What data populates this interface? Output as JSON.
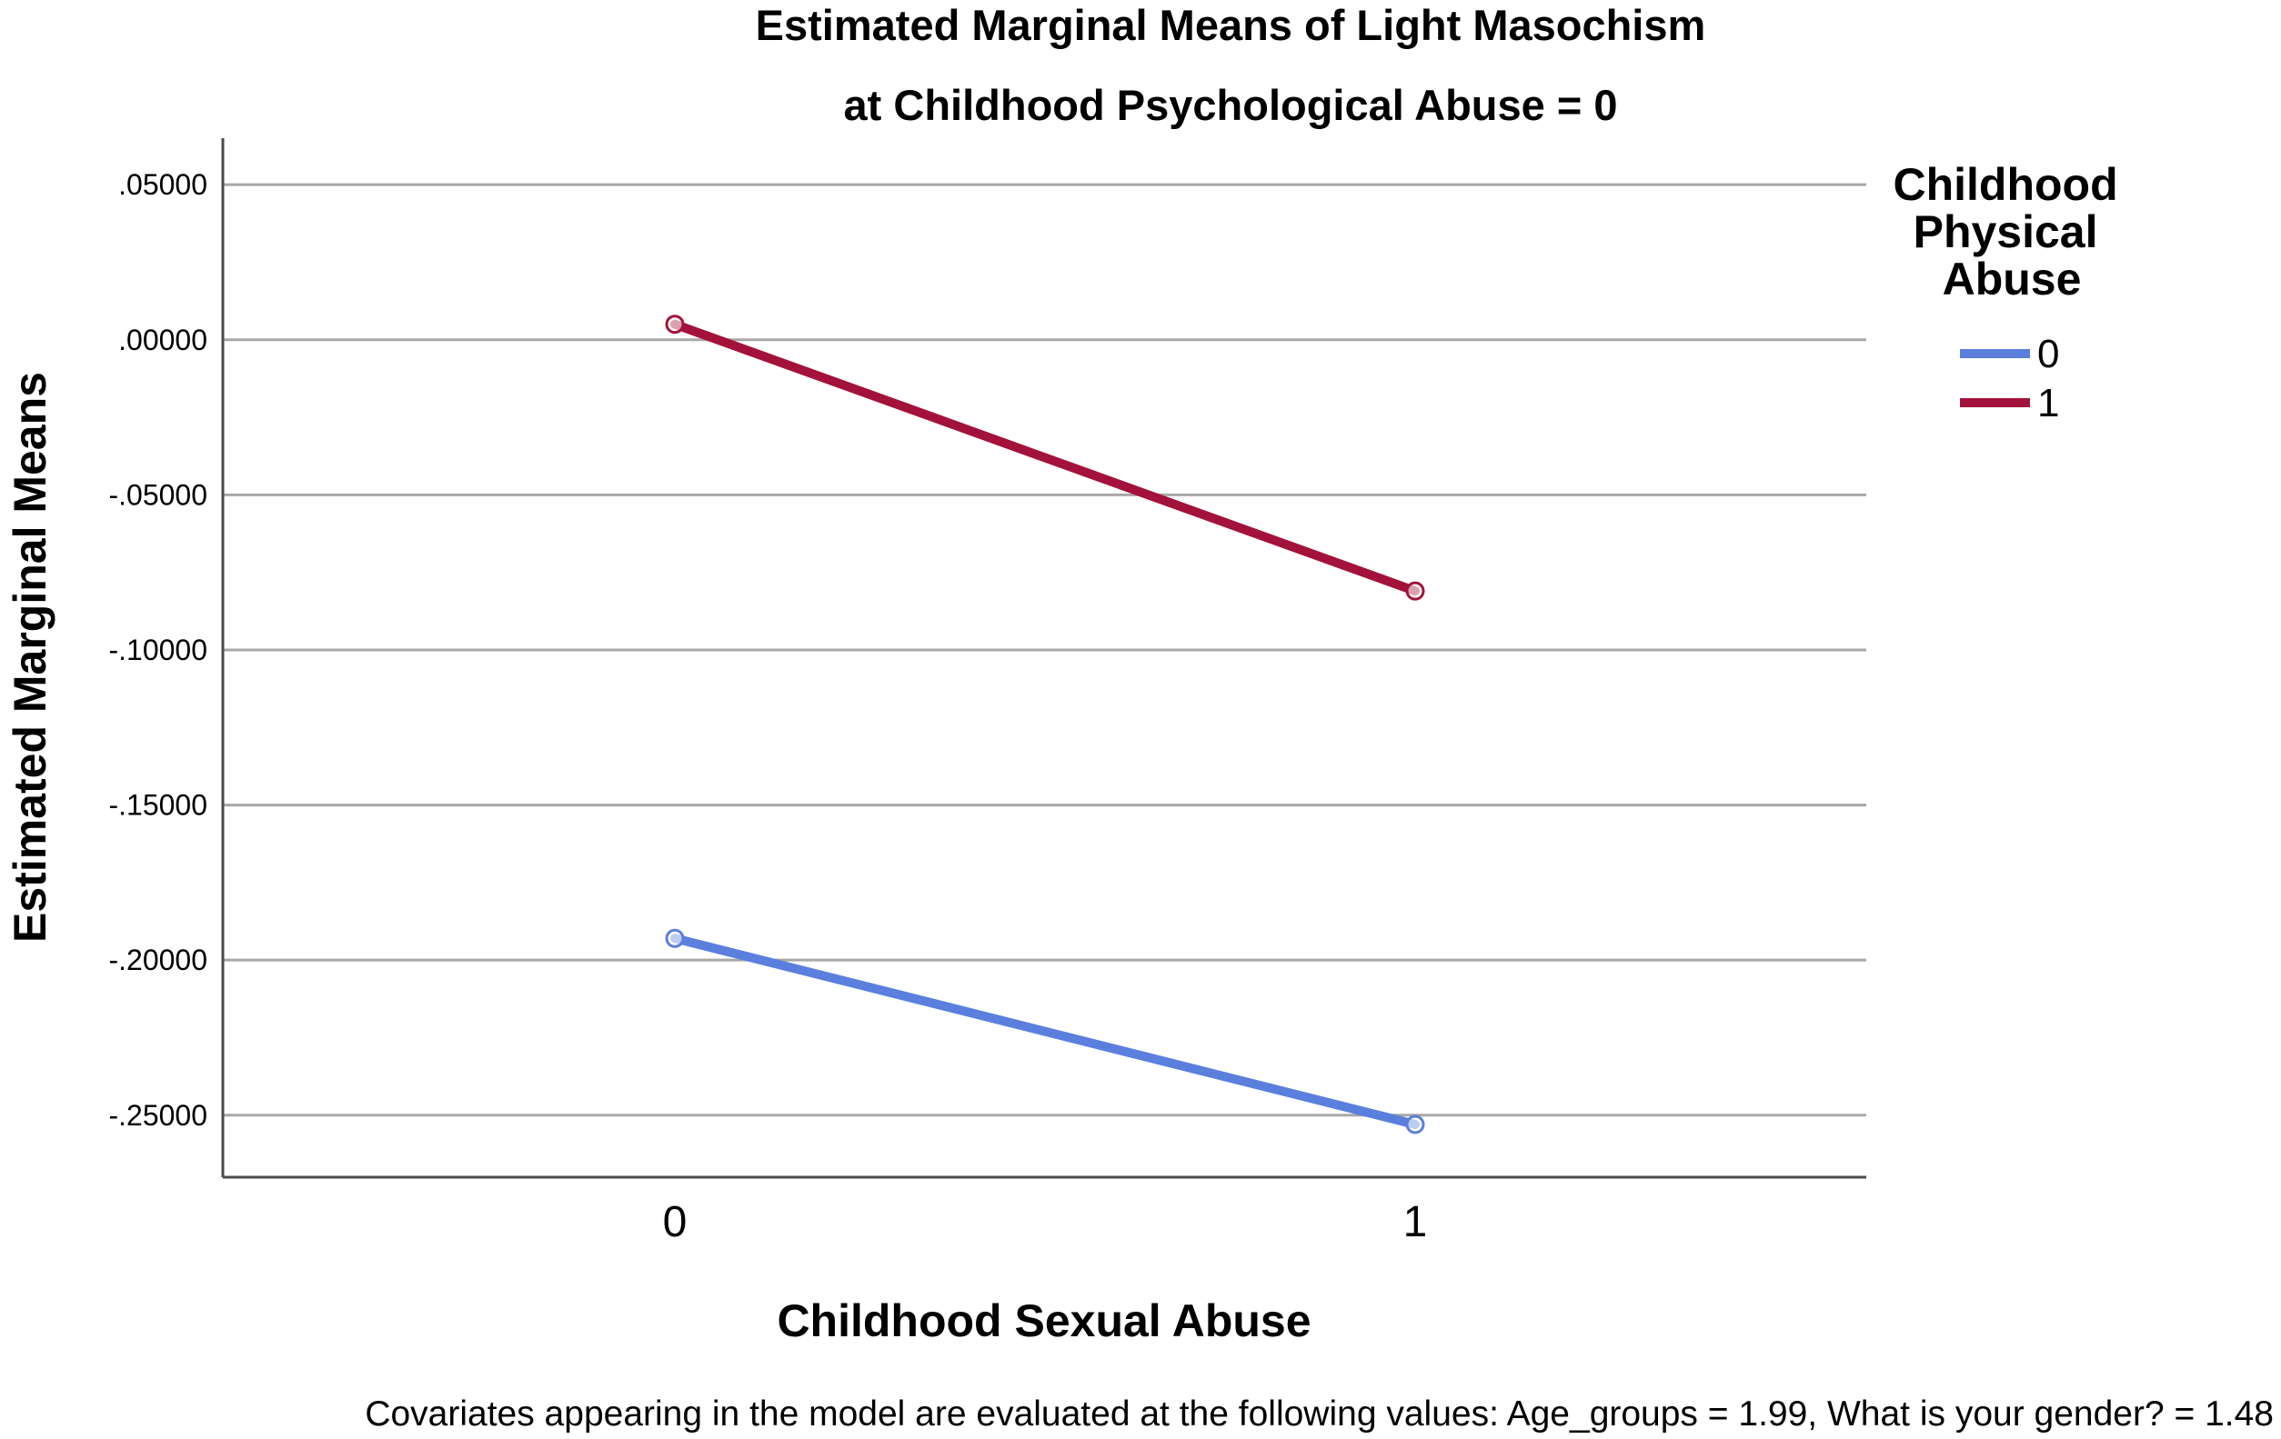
{
  "chart_data": {
    "type": "line",
    "title": "Estimated Marginal Means of Light Masochism",
    "subtitle": "at Childhood Psychological Abuse = 0",
    "xlabel": "Childhood Sexual Abuse",
    "ylabel": "Estimated Marginal Means",
    "categories": [
      "0",
      "1"
    ],
    "ylim": [
      -0.27,
      0.065
    ],
    "yticks": [
      0.05,
      0.0,
      -0.05,
      -0.1,
      -0.15,
      -0.2,
      -0.25
    ],
    "ytick_labels": [
      ".05000",
      ".00000",
      "-.05000",
      "-.10000",
      "-.15000",
      "-.20000",
      "-.25000"
    ],
    "grid": true,
    "legend_title": "Childhood Physical Abuse",
    "legend_title_lines": [
      "Childhood",
      "Physical",
      "Abuse"
    ],
    "legend_position": "right",
    "series": [
      {
        "name": "0",
        "color": "#5b7fdc",
        "values": [
          -0.193,
          -0.253
        ]
      },
      {
        "name": "1",
        "color": "#a3123a",
        "values": [
          0.005,
          -0.081
        ]
      }
    ],
    "footnote": "Covariates appearing in the model are evaluated at the following values: Age_groups = 1.99, What is your gender? = 1.48"
  }
}
